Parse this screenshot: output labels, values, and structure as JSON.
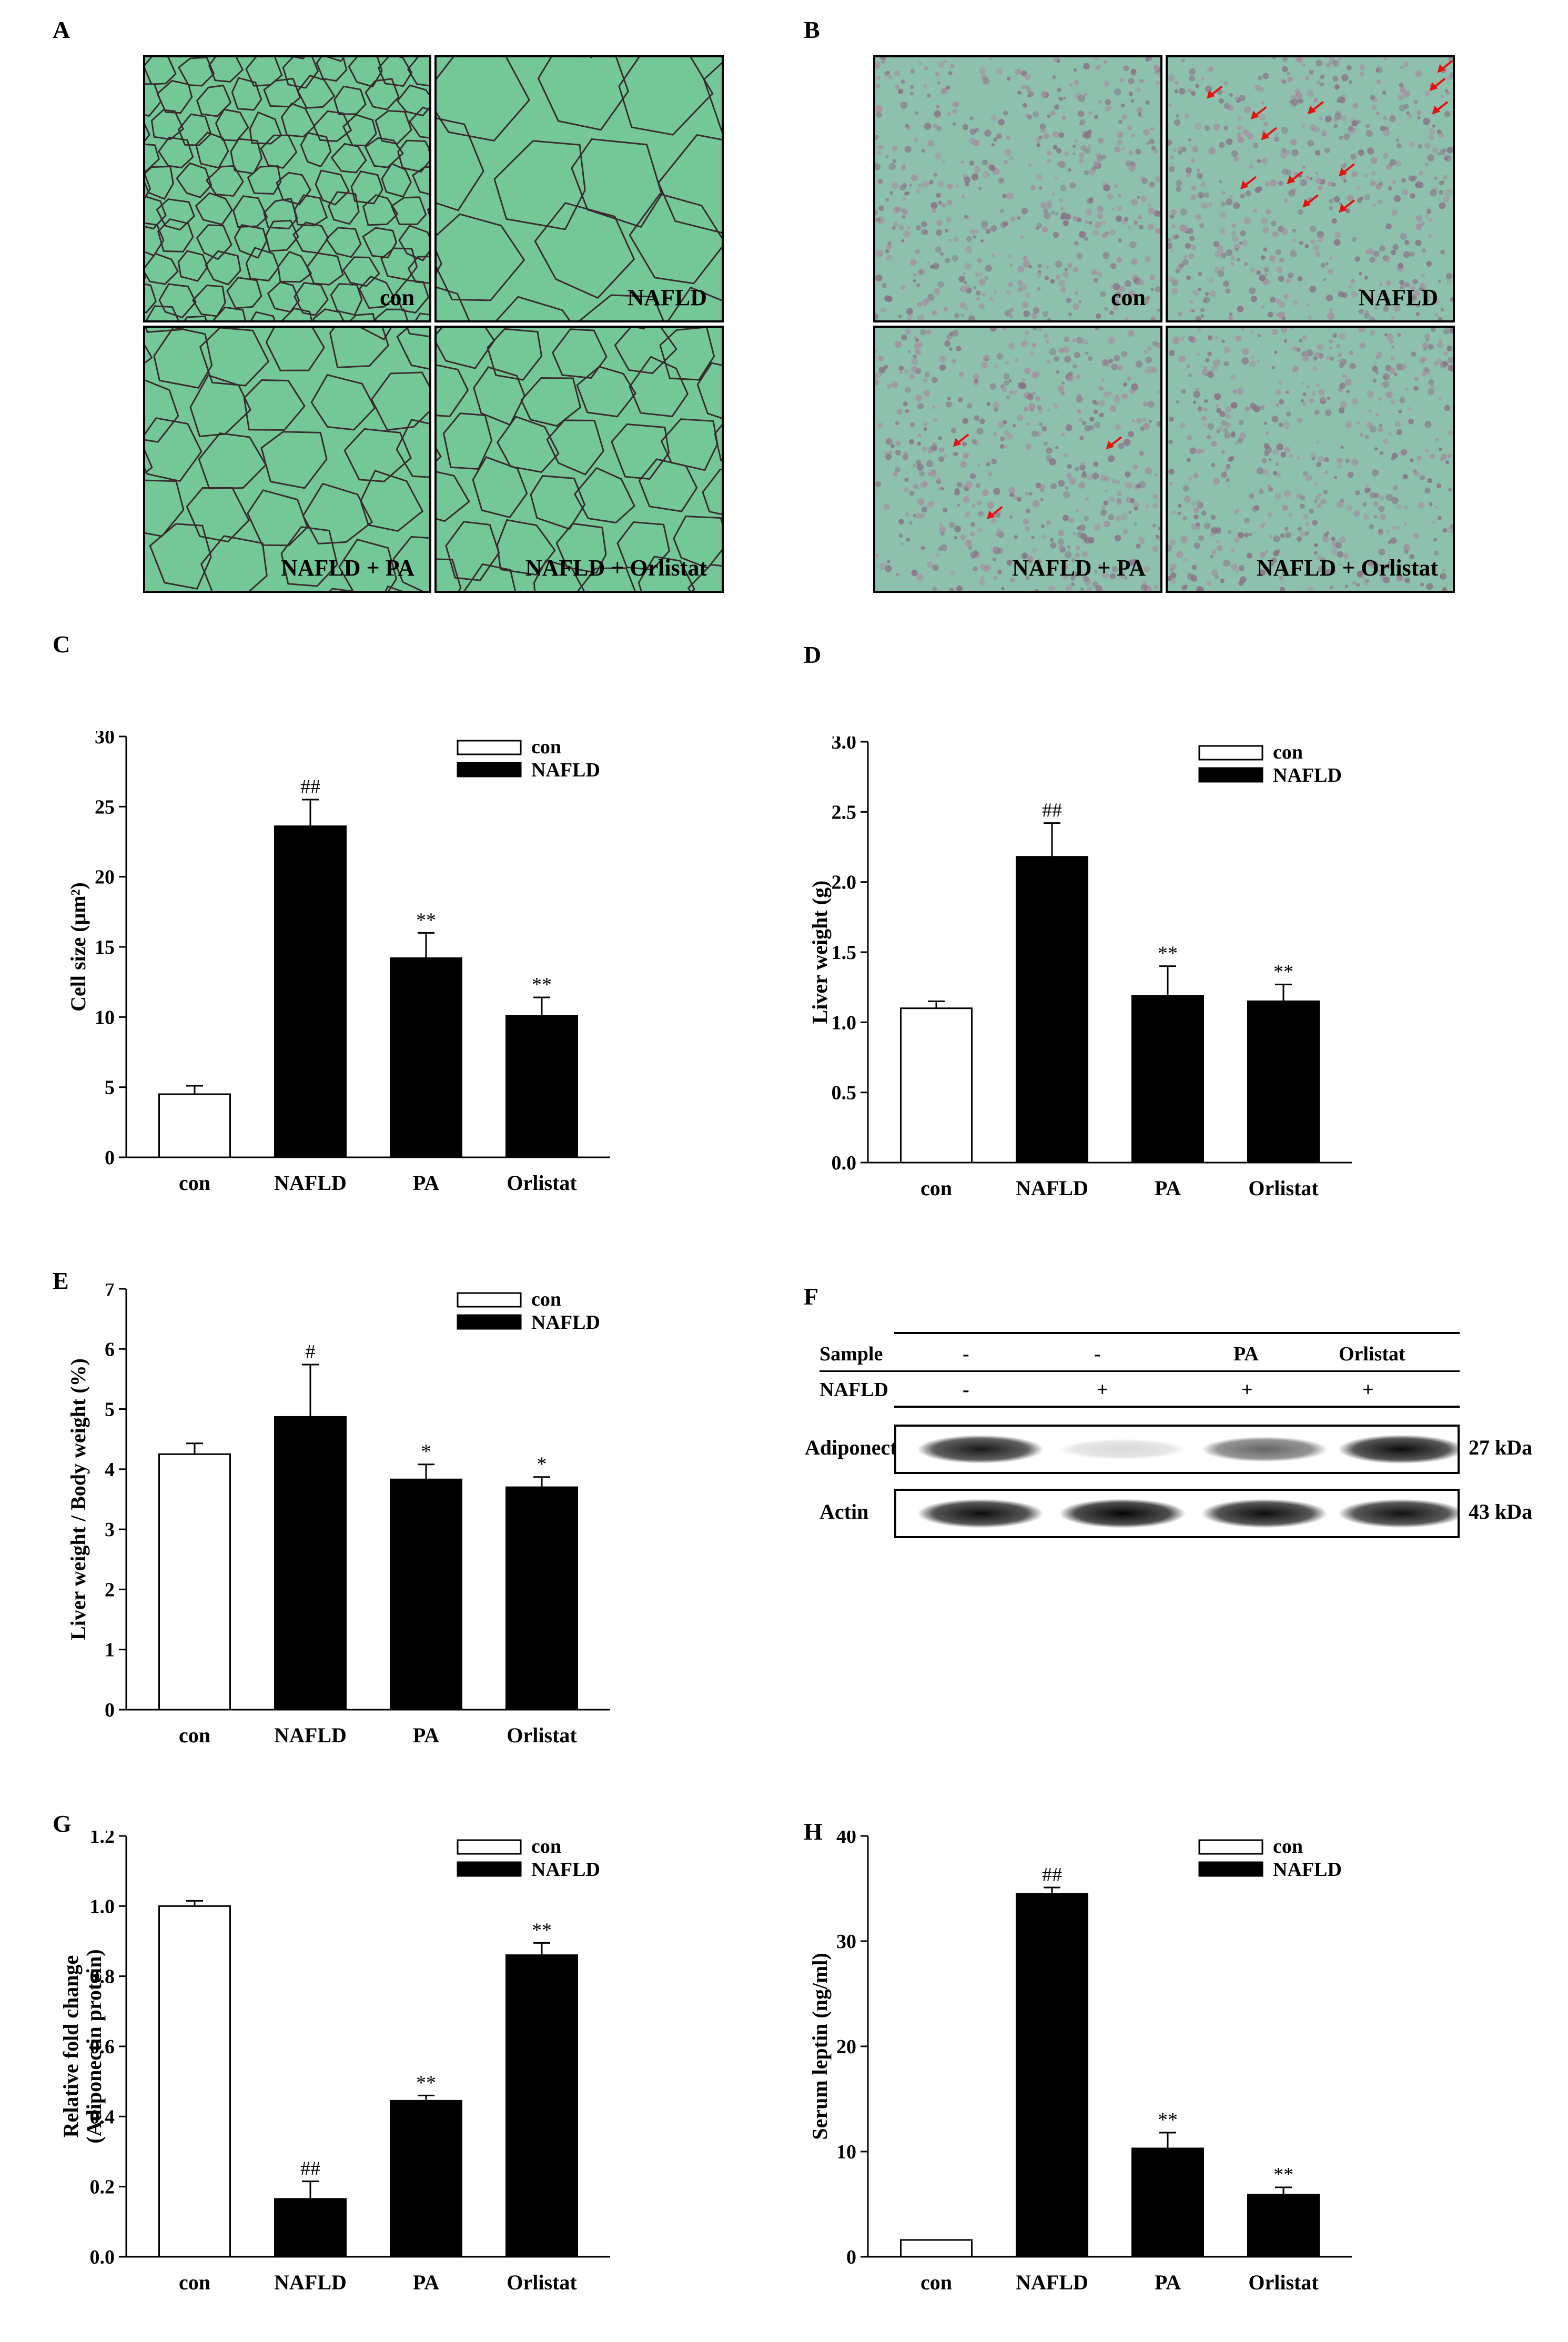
{
  "panels": {
    "A": {
      "letter": "A",
      "images": [
        {
          "label": "con"
        },
        {
          "label": "NAFLD"
        },
        {
          "label": "NAFLD + PA"
        },
        {
          "label": "NAFLD + Orlistat"
        }
      ]
    },
    "B": {
      "letter": "B",
      "images": [
        {
          "label": "con"
        },
        {
          "label": "NAFLD"
        },
        {
          "label": "NAFLD + PA"
        },
        {
          "label": "NAFLD + Orlistat"
        }
      ]
    },
    "C": {
      "letter": "C"
    },
    "D": {
      "letter": "D"
    },
    "E": {
      "letter": "E"
    },
    "F": {
      "letter": "F"
    },
    "G": {
      "letter": "G"
    },
    "H": {
      "letter": "H"
    }
  },
  "colors": {
    "adipose_bg": "#74c898",
    "liver_bg": "#8ec0ae",
    "arrow": "#e81010",
    "bar_con": "#ffffff",
    "bar_treat": "#000000"
  },
  "western_blot": {
    "row1_label": "Sample",
    "row1_values": [
      "-",
      "-",
      "PA",
      "Orlistat"
    ],
    "row2_label": "NAFLD",
    "row2_values": [
      "-",
      "+",
      "+",
      "+"
    ],
    "bands": [
      {
        "name": "Adiponectin",
        "size": "27 kDa",
        "intensity": [
          0.9,
          0.15,
          0.6,
          0.95
        ]
      },
      {
        "name": "Actin",
        "size": "43 kDa",
        "intensity": [
          0.95,
          0.98,
          0.95,
          0.93
        ]
      }
    ]
  },
  "chart_data": [
    {
      "id": "C",
      "type": "bar",
      "ylabel": "Cell size (μm²)",
      "categories": [
        "con",
        "NAFLD",
        "PA",
        "Orlistat"
      ],
      "values": [
        4.5,
        23.6,
        14.2,
        10.1
      ],
      "errors": [
        0.6,
        1.9,
        1.8,
        1.3
      ],
      "sig": [
        "",
        "##",
        "**",
        "**"
      ],
      "ylim": [
        0,
        30
      ],
      "yticks": [
        0,
        5,
        10,
        15,
        20,
        25,
        30
      ],
      "tick_decimals": 0,
      "legend": [
        "con",
        "NAFLD"
      ]
    },
    {
      "id": "D",
      "type": "bar",
      "ylabel": "Liver weight (g)",
      "categories": [
        "con",
        "NAFLD",
        "PA",
        "Orlistat"
      ],
      "values": [
        1.1,
        2.18,
        1.19,
        1.15
      ],
      "errors": [
        0.05,
        0.24,
        0.21,
        0.12
      ],
      "sig": [
        "",
        "##",
        "**",
        "**"
      ],
      "ylim": [
        0,
        3.0
      ],
      "yticks": [
        0,
        0.5,
        1.0,
        1.5,
        2.0,
        2.5,
        3.0
      ],
      "tick_decimals": 1,
      "legend": [
        "con",
        "NAFLD"
      ]
    },
    {
      "id": "E",
      "type": "bar",
      "ylabel": "Liver weight / Body weight (%)",
      "categories": [
        "con",
        "NAFLD",
        "PA",
        "Orlistat"
      ],
      "values": [
        4.25,
        4.87,
        3.83,
        3.7
      ],
      "errors": [
        0.18,
        0.87,
        0.25,
        0.17
      ],
      "sig": [
        "",
        "#",
        "*",
        "*"
      ],
      "ylim": [
        0,
        7
      ],
      "yticks": [
        0,
        1,
        2,
        3,
        4,
        5,
        6,
        7
      ],
      "tick_decimals": 0,
      "legend": [
        "con",
        "NAFLD"
      ]
    },
    {
      "id": "G",
      "type": "bar",
      "ylabel": "Relative fold change",
      "ylabel2": "(Adiponectin protein)",
      "categories": [
        "con",
        "NAFLD",
        "PA",
        "Orlistat"
      ],
      "values": [
        1.0,
        0.165,
        0.445,
        0.86
      ],
      "errors": [
        0.015,
        0.05,
        0.015,
        0.035
      ],
      "sig": [
        "",
        "##",
        "**",
        "**"
      ],
      "ylim": [
        0,
        1.2
      ],
      "yticks": [
        0,
        0.2,
        0.4,
        0.6,
        0.8,
        1.0,
        1.2
      ],
      "tick_decimals": 1,
      "legend": [
        "con",
        "NAFLD"
      ]
    },
    {
      "id": "H",
      "type": "bar",
      "ylabel": "Serum leptin (ng/ml)",
      "categories": [
        "con",
        "NAFLD",
        "PA",
        "Orlistat"
      ],
      "values": [
        1.6,
        34.5,
        10.3,
        5.9
      ],
      "errors": [
        0.0,
        0.6,
        1.5,
        0.7
      ],
      "sig": [
        "",
        "##",
        "**",
        "**"
      ],
      "ylim": [
        0,
        40
      ],
      "yticks": [
        0,
        10,
        20,
        30,
        40
      ],
      "tick_decimals": 0,
      "legend": [
        "con",
        "NAFLD"
      ]
    }
  ]
}
